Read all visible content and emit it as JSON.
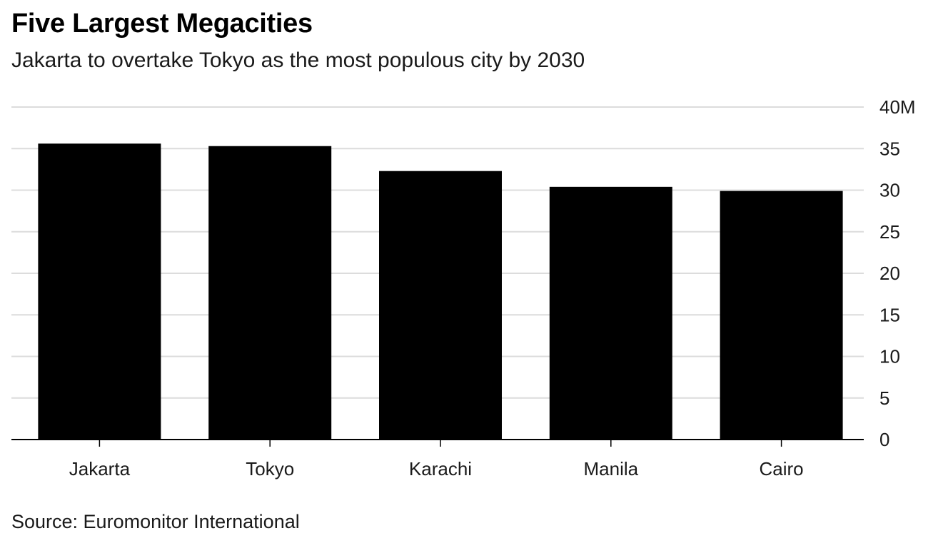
{
  "chart_data": {
    "type": "bar",
    "title": "Five Largest Megacities",
    "subtitle": "Jakarta to overtake Tokyo as the most populous city by 2030",
    "source": "Source: Euromonitor International",
    "categories": [
      "Jakarta",
      "Tokyo",
      "Karachi",
      "Manila",
      "Cairo"
    ],
    "values": [
      35.6,
      35.3,
      32.3,
      30.4,
      29.9
    ],
    "unit": "M",
    "xlabel": "",
    "ylabel": "",
    "ylim": [
      0,
      40
    ],
    "y_ticks": [
      "0",
      "5",
      "10",
      "15",
      "20",
      "25",
      "30",
      "35",
      "40M"
    ],
    "y_axis_side": "right",
    "grid": true,
    "bar_color": "#000000",
    "grid_color": "#dcdcdc",
    "axis_color": "#000000",
    "legend": "none"
  }
}
